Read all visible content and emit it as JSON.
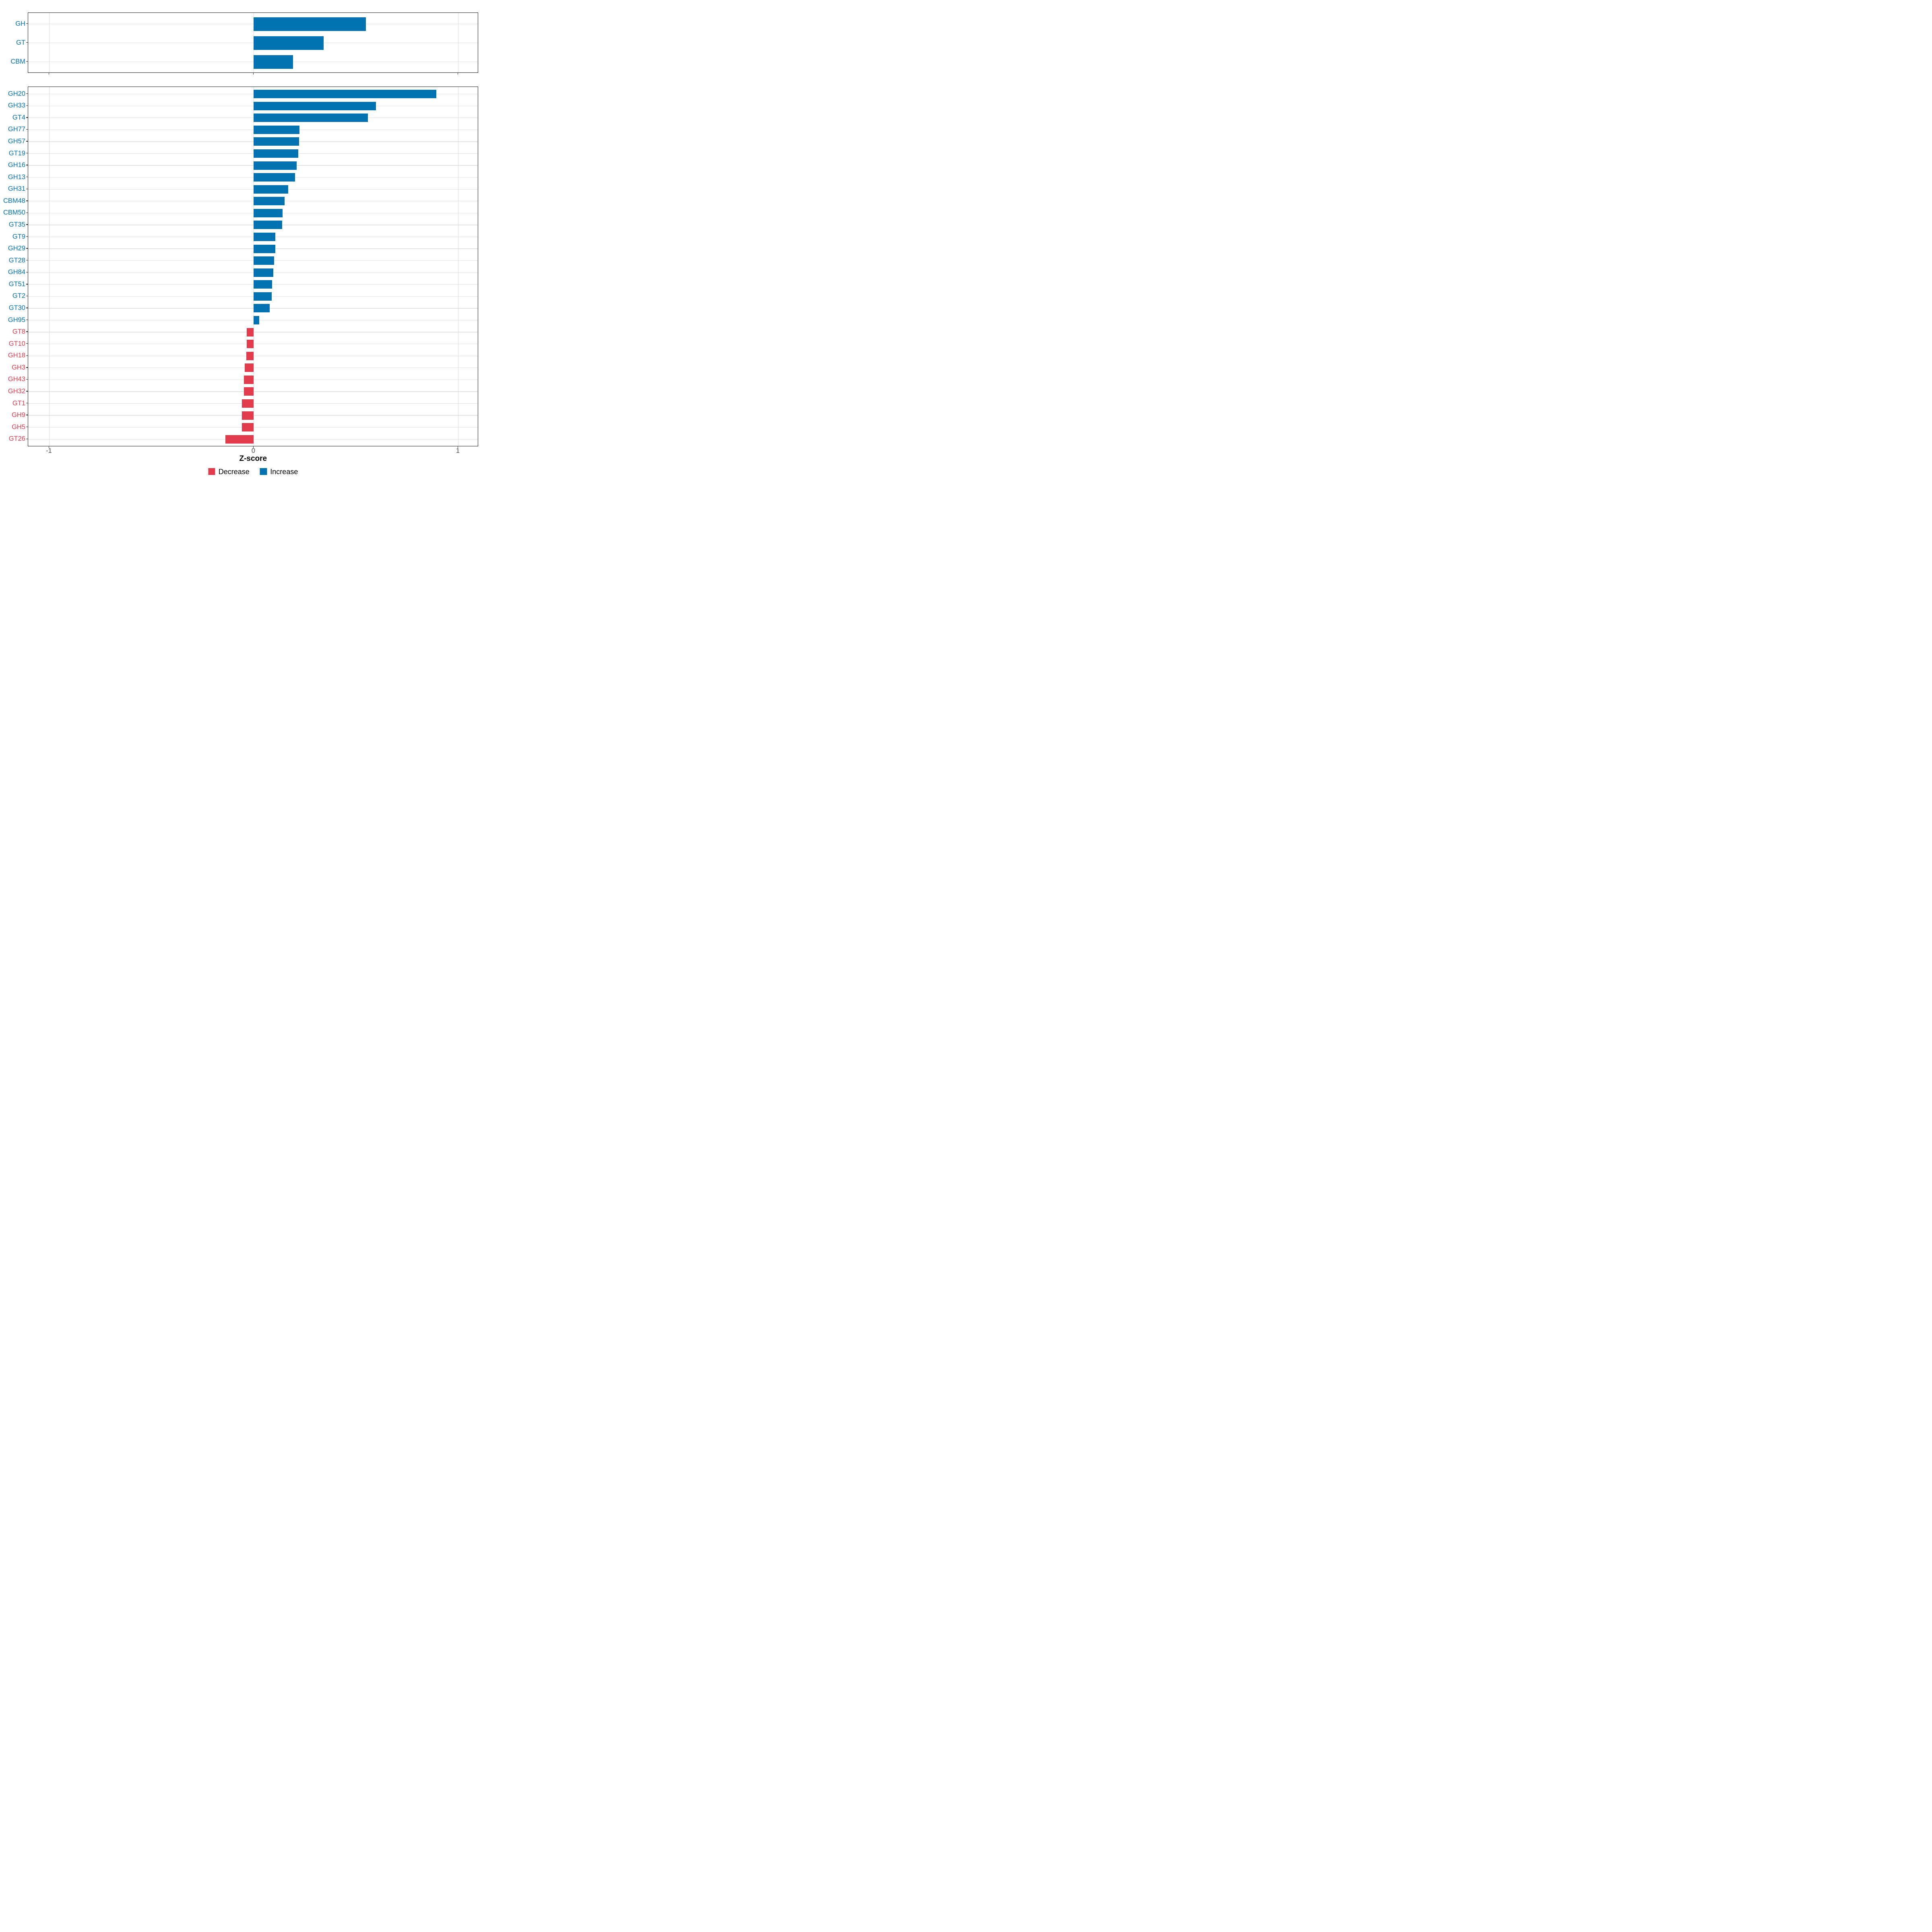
{
  "figure": {
    "x_axis": {
      "title": "Z-score",
      "ticks": [
        {
          "value": -1,
          "label": "-1"
        },
        {
          "value": 0,
          "label": "0"
        },
        {
          "value": 1,
          "label": "1"
        }
      ]
    },
    "legend": {
      "items": [
        {
          "label": "Decrease",
          "color": "#E23B4B"
        },
        {
          "label": "Increase",
          "color": "#0072B2"
        }
      ]
    }
  },
  "chart_data": {
    "type": "bar",
    "orientation": "horizontal",
    "title": "",
    "xlabel": "Z-score",
    "ylabel": "",
    "xlim": [
      -1.1,
      1.1
    ],
    "x_ticks": [
      -1,
      0,
      1
    ],
    "grid": true,
    "legend_position": "bottom",
    "colors": {
      "increase": "#0072B2",
      "decrease": "#E23B4B"
    },
    "panels": [
      {
        "name": "cazyme-classes",
        "categories": [
          "GH",
          "GT",
          "CBM"
        ],
        "values": [
          0.549,
          0.342,
          0.192
        ],
        "directions": [
          "increase",
          "increase",
          "increase"
        ]
      },
      {
        "name": "cazyme-families",
        "categories": [
          "GH20",
          "GH33",
          "GT4",
          "GH77",
          "GH57",
          "GT19",
          "GH16",
          "GH13",
          "GH31",
          "CBM48",
          "CBM50",
          "GT35",
          "GT9",
          "GH29",
          "GT28",
          "GH84",
          "GT51",
          "GT2",
          "GT30",
          "GH95",
          "GT8",
          "GT10",
          "GH18",
          "GH3",
          "GH43",
          "GH32",
          "GT1",
          "GH9",
          "GH5",
          "GT26"
        ],
        "values": [
          0.893,
          0.598,
          0.558,
          0.223,
          0.222,
          0.217,
          0.21,
          0.201,
          0.168,
          0.15,
          0.14,
          0.139,
          0.106,
          0.105,
          0.099,
          0.095,
          0.089,
          0.088,
          0.078,
          0.026,
          -0.034,
          -0.035,
          -0.036,
          -0.045,
          -0.048,
          -0.048,
          -0.059,
          -0.059,
          -0.059,
          -0.139
        ],
        "directions": [
          "increase",
          "increase",
          "increase",
          "increase",
          "increase",
          "increase",
          "increase",
          "increase",
          "increase",
          "increase",
          "increase",
          "increase",
          "increase",
          "increase",
          "increase",
          "increase",
          "increase",
          "increase",
          "increase",
          "increase",
          "decrease",
          "decrease",
          "decrease",
          "decrease",
          "decrease",
          "decrease",
          "decrease",
          "decrease",
          "decrease",
          "decrease"
        ]
      }
    ]
  }
}
